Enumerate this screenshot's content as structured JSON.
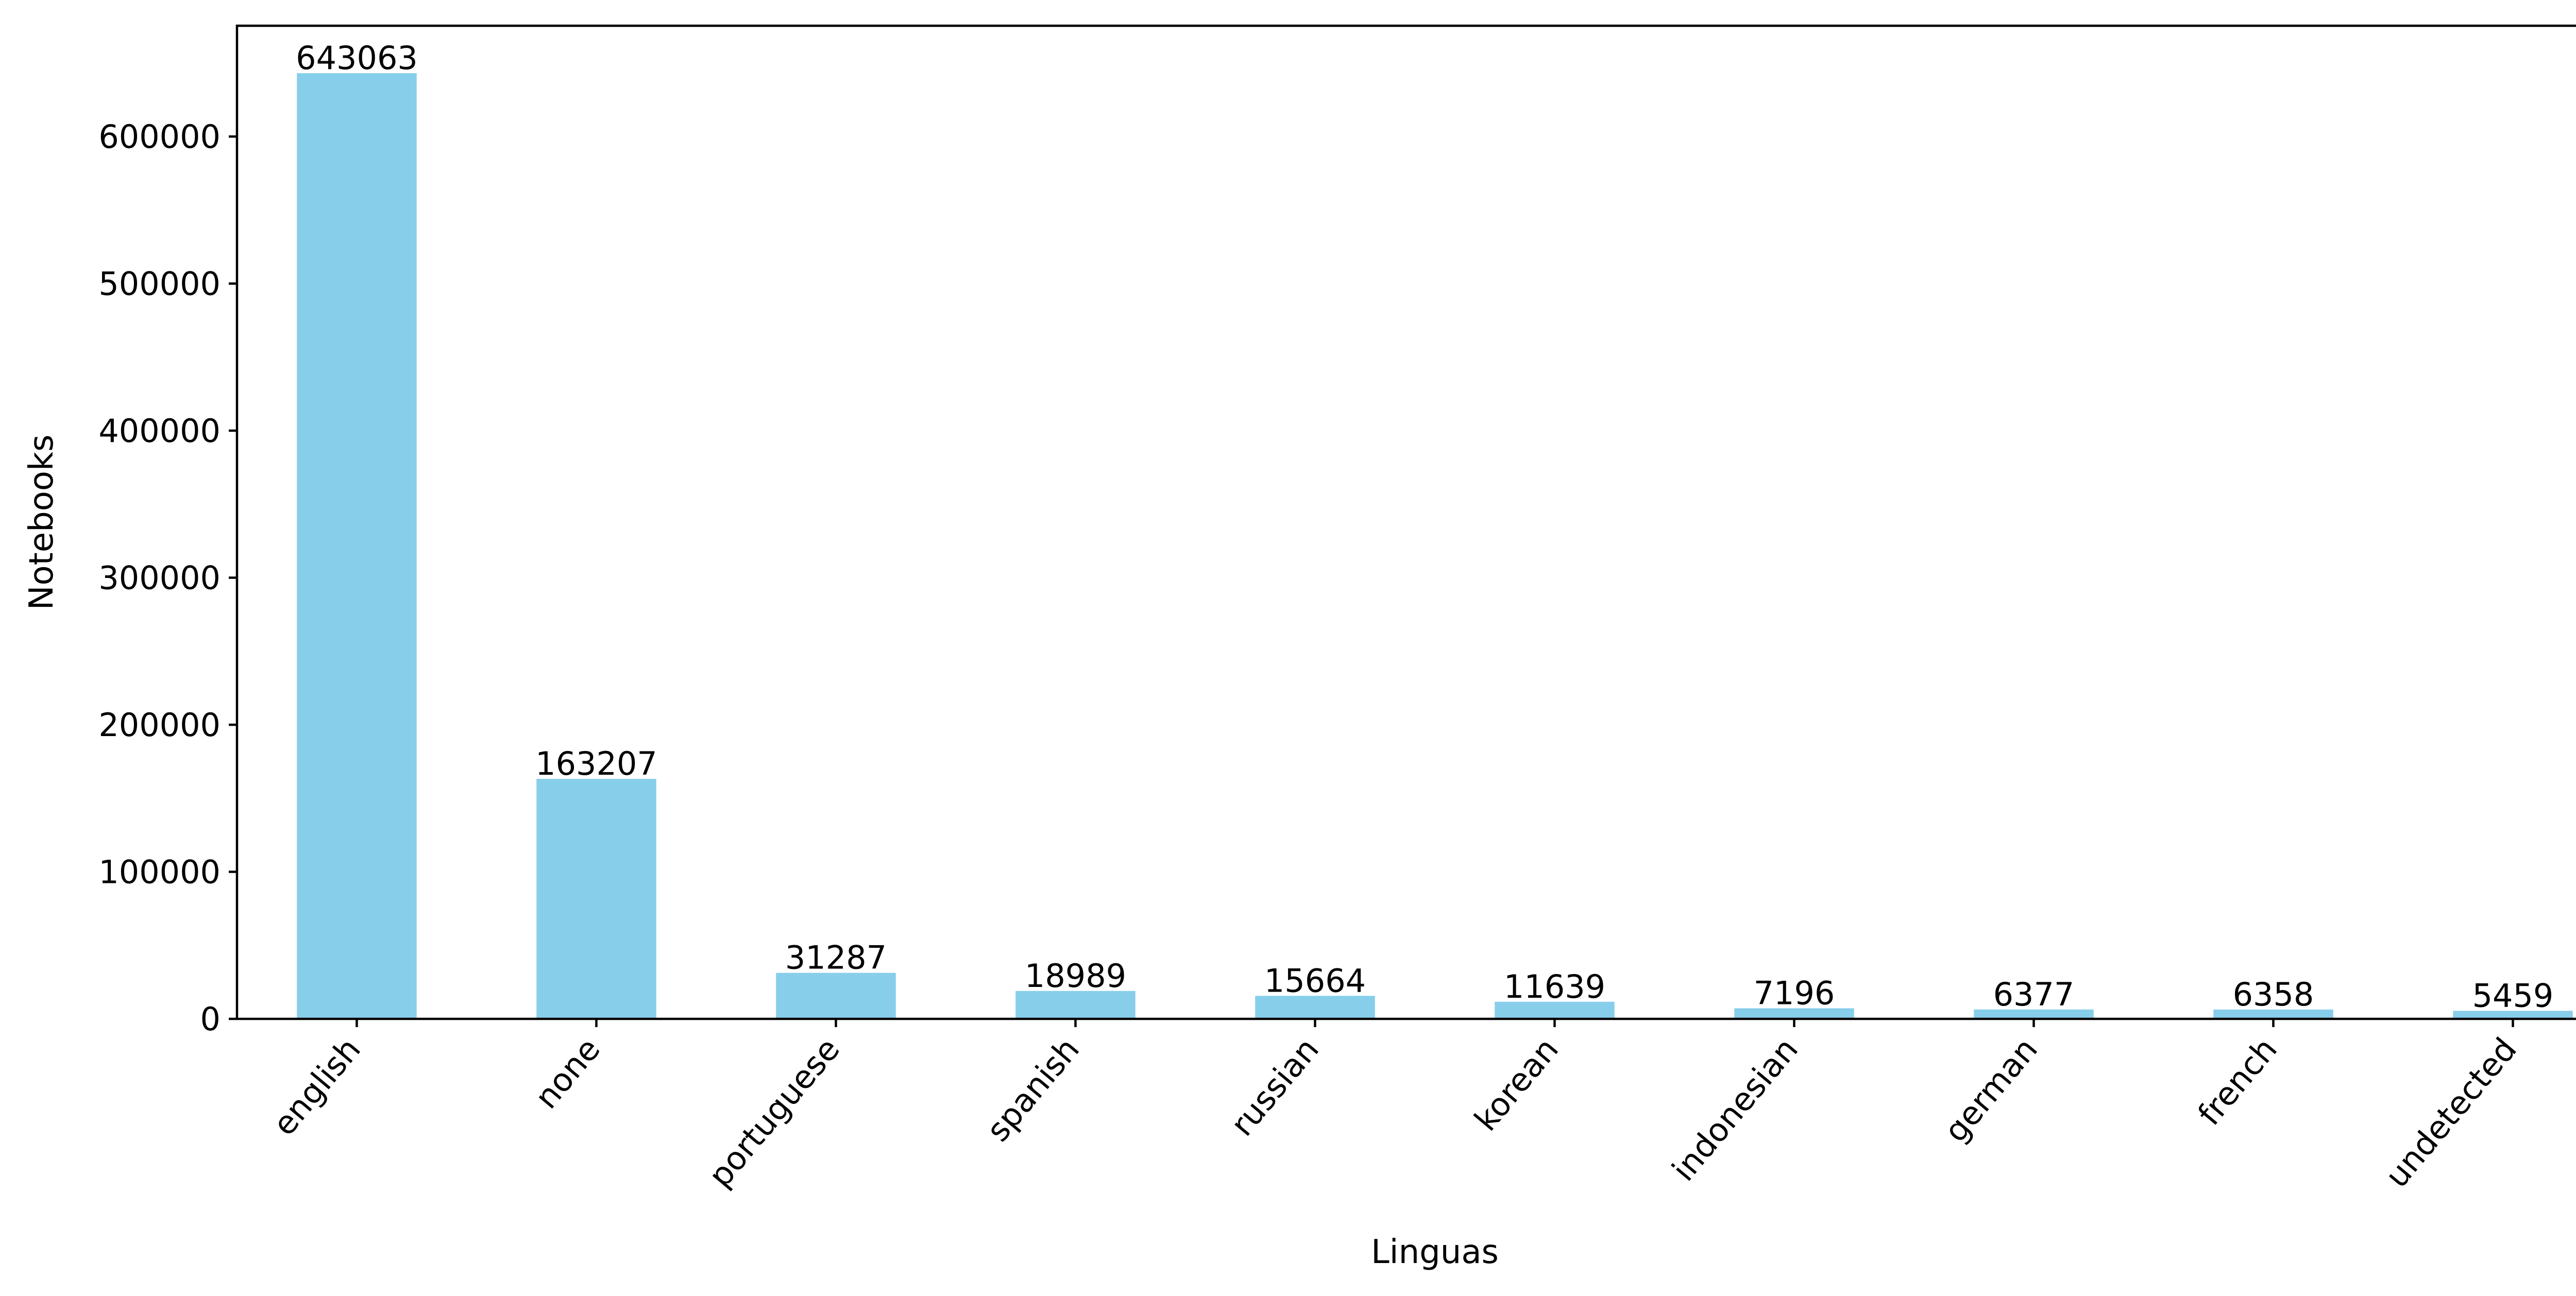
{
  "chart_data": {
    "type": "bar",
    "categories": [
      "english",
      "none",
      "portuguese",
      "spanish",
      "russian",
      "korean",
      "indonesian",
      "german",
      "french",
      "undetected"
    ],
    "values": [
      643063,
      163207,
      31287,
      18989,
      15664,
      11639,
      7196,
      6377,
      6358,
      5459
    ],
    "data_labels": [
      "643063",
      "163207",
      "31287",
      "18989",
      "15664",
      "11639",
      "7196",
      "6377",
      "6358",
      "5459"
    ],
    "xlabel": "Linguas",
    "ylabel": "Notebooks",
    "ylim": [
      0,
      675316
    ],
    "yticks": [
      0,
      100000,
      200000,
      300000,
      400000,
      500000,
      600000
    ],
    "ytick_labels": [
      "0",
      "100000",
      "200000",
      "300000",
      "400000",
      "500000",
      "600000"
    ],
    "x_tick_rotation_deg": 50,
    "grid": false,
    "legend": "none",
    "colors": {
      "bar": "#87ceeb",
      "axes": "#000000",
      "text": "#000000"
    }
  }
}
